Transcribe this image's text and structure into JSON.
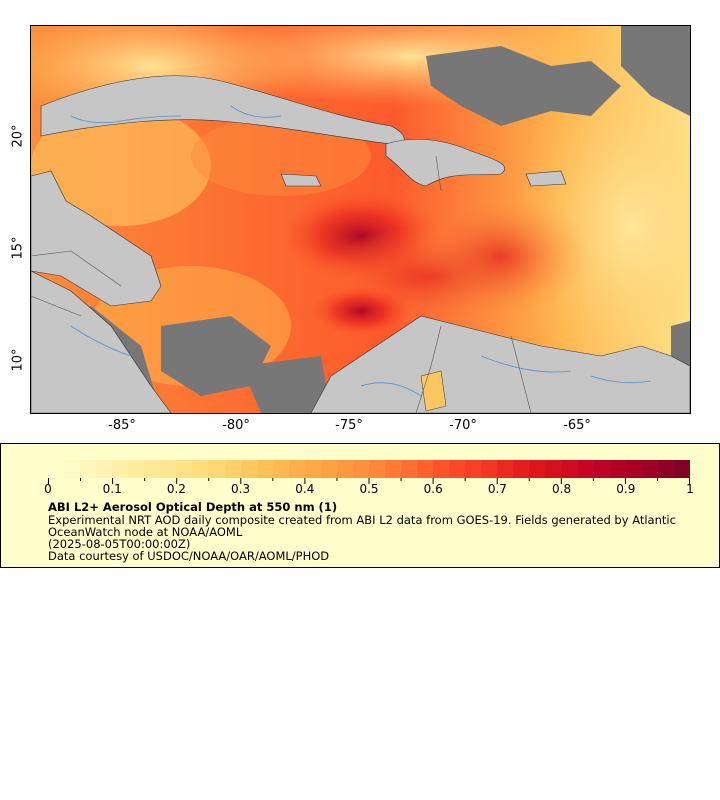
{
  "map": {
    "x_ticks": [
      "-85°",
      "-80°",
      "-75°",
      "-70°",
      "-65°"
    ],
    "y_ticks": [
      "20°",
      "15°",
      "10°"
    ],
    "colors": {
      "land": "#c6c6c6",
      "nodata": "#777777",
      "rivers": "#5b8fc9",
      "borders": "#555555",
      "coast": "#000000"
    }
  },
  "legend": {
    "tick_labels": [
      "0",
      "0.1",
      "0.2",
      "0.3",
      "0.4",
      "0.5",
      "0.6",
      "0.7",
      "0.8",
      "0.9",
      "1"
    ],
    "title": "ABI L2+ Aerosol Optical Depth at 550 nm (1)",
    "description": "Experimental NRT AOD daily composite created from ABI L2 data from GOES-19. Fields generated by Atlantic OceanWatch node at NOAA/AOML",
    "date": "(2025-08-05T00:00:00Z)",
    "credit": "Data courtesy of USDOC/NOAA/OAR/AOML/PHOD",
    "colormap": [
      "#ffffcc",
      "#fff4b8",
      "#ffeda0",
      "#fee58c",
      "#fed976",
      "#fec660",
      "#feb24c",
      "#fea044",
      "#fd8d3c",
      "#fd7034",
      "#fc4e2a",
      "#f33825",
      "#e31a1c",
      "#d00d21",
      "#bd0026",
      "#a50026",
      "#800026"
    ]
  }
}
